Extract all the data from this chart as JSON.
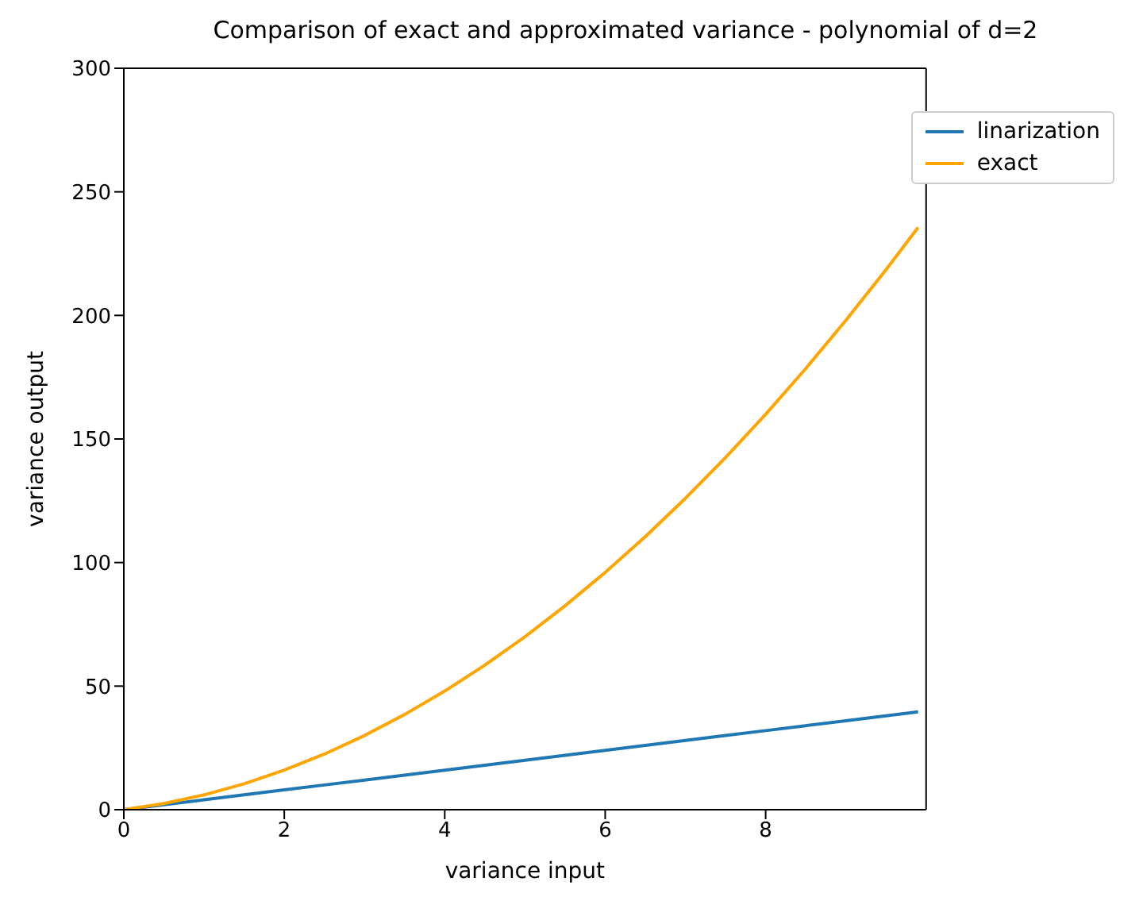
{
  "chart_data": {
    "type": "line",
    "title": "Comparison of exact and approximated variance - polynomial of d=2",
    "xlabel": "variance input",
    "ylabel": "variance output",
    "x": [
      0,
      0.5,
      1,
      1.5,
      2,
      2.5,
      3,
      3.5,
      4,
      4.5,
      5,
      5.5,
      6,
      6.5,
      7,
      7.5,
      8,
      8.5,
      9,
      9.5,
      9.9
    ],
    "series": [
      {
        "name": "linarization",
        "color": "#1f77b4",
        "values": [
          0,
          2,
          4,
          6,
          8,
          10,
          12,
          14,
          16,
          18,
          20,
          22,
          24,
          26,
          28,
          30,
          32,
          34,
          36,
          38,
          39.6
        ]
      },
      {
        "name": "exact",
        "color": "#ffa500",
        "values": [
          0,
          2.5,
          6,
          10.5,
          16,
          22.5,
          30,
          38.5,
          48,
          58.5,
          70,
          82.5,
          96,
          110.5,
          126,
          142.5,
          160,
          178.5,
          198,
          218.5,
          235.6
        ]
      }
    ],
    "xlim": [
      0,
      10
    ],
    "xticks": [
      0,
      2,
      4,
      6,
      8
    ],
    "ylim": [
      0,
      300
    ],
    "yticks": [
      0,
      50,
      100,
      150,
      200,
      250,
      300
    ],
    "grid": false,
    "legend": "top right",
    "marker": "none",
    "line_style": "solid"
  }
}
